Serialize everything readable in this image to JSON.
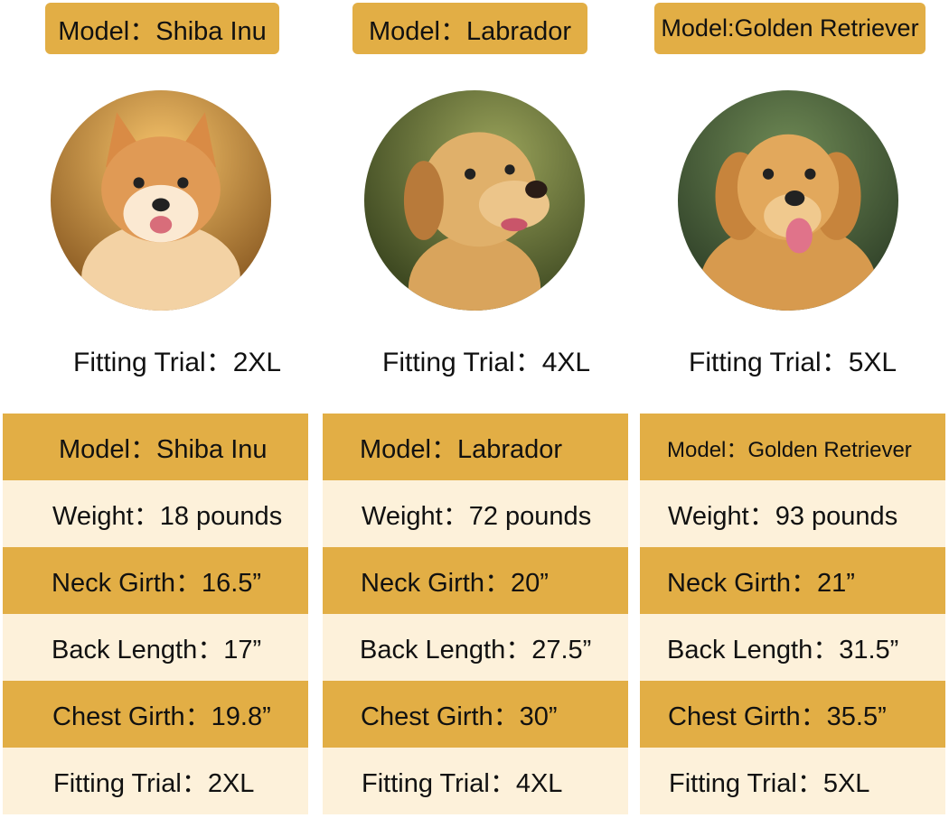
{
  "colors": {
    "header_gold": "#E2AE45",
    "row_cream": "#FDF1DA"
  },
  "columns": [
    {
      "badge": "Model：Shiba Inu",
      "photo": "shiba-inu-photo",
      "fitting_caption": "Fitting Trial：2XL",
      "rows": [
        "Model：Shiba Inu",
        "Weight：18 pounds",
        "Neck Girth：16.5”",
        "Back Length：17”",
        "Chest Girth：19.8”",
        "Fitting Trial：2XL"
      ]
    },
    {
      "badge": "Model：Labrador",
      "photo": "labrador-photo",
      "fitting_caption": "Fitting Trial：4XL",
      "rows": [
        "Model：Labrador",
        "Weight：72 pounds",
        "Neck Girth：20”",
        "Back Length：27.5”",
        "Chest Girth：30”",
        "Fitting Trial：4XL"
      ]
    },
    {
      "badge": "Model:Golden Retriever",
      "photo": "golden-retriever-photo",
      "fitting_caption": "Fitting Trial：5XL",
      "rows": [
        "Model：Golden Retriever",
        "Weight：93 pounds",
        "Neck Girth：21”",
        "Back Length：31.5”",
        "Chest Girth：35.5”",
        "Fitting Trial：5XL"
      ]
    }
  ]
}
